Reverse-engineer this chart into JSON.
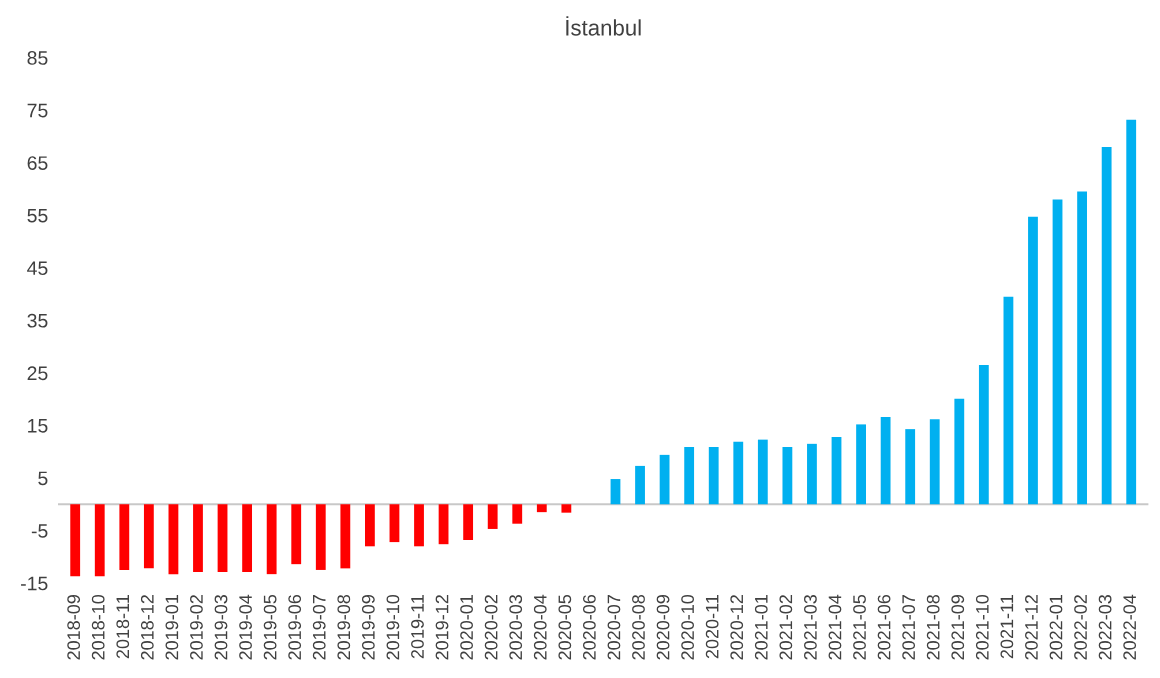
{
  "chart_data": {
    "type": "bar",
    "title": "İstanbul",
    "categories": [
      "2018-09",
      "2018-10",
      "2018-11",
      "2018-12",
      "2019-01",
      "2019-02",
      "2019-03",
      "2019-04",
      "2019-05",
      "2019-06",
      "2019-07",
      "2019-08",
      "2019-09",
      "2019-10",
      "2019-11",
      "2019-12",
      "2020-01",
      "2020-02",
      "2020-03",
      "2020-04",
      "2020-05",
      "2020-06",
      "2020-07",
      "2020-08",
      "2020-09",
      "2020-10",
      "2020-11",
      "2020-12",
      "2021-01",
      "2021-02",
      "2021-03",
      "2021-04",
      "2021-05",
      "2021-06",
      "2021-07",
      "2021-08",
      "2021-09",
      "2021-10",
      "2021-11",
      "2021-12",
      "2022-01",
      "2022-02",
      "2022-03",
      "2022-04"
    ],
    "values": [
      -13.7,
      -13.7,
      -12.5,
      -12.2,
      -13.3,
      -12.9,
      -12.9,
      -12.9,
      -13.3,
      -11.4,
      -12.5,
      -12.2,
      -8.0,
      -7.2,
      -8.0,
      -7.6,
      -6.8,
      -4.7,
      -3.7,
      -1.5,
      -1.6,
      0,
      4.8,
      7.3,
      9.4,
      10.9,
      10.9,
      11.9,
      12.3,
      10.9,
      11.5,
      12.8,
      15.2,
      16.6,
      14.3,
      16.2,
      20.1,
      26.5,
      39.5,
      54.7,
      58.0,
      59.5,
      68.0,
      73.2
    ],
    "colors": [
      "#ff0000",
      "#ff0000",
      "#ff0000",
      "#ff0000",
      "#ff0000",
      "#ff0000",
      "#ff0000",
      "#ff0000",
      "#ff0000",
      "#ff0000",
      "#ff0000",
      "#ff0000",
      "#ff0000",
      "#ff0000",
      "#ff0000",
      "#ff0000",
      "#ff0000",
      "#ff0000",
      "#ff0000",
      "#ff0000",
      "#ff0000",
      "#ff0000",
      "#00b0f0",
      "#00b0f0",
      "#00b0f0",
      "#00b0f0",
      "#00b0f0",
      "#00b0f0",
      "#00b0f0",
      "#00b0f0",
      "#00b0f0",
      "#00b0f0",
      "#00b0f0",
      "#00b0f0",
      "#00b0f0",
      "#00b0f0",
      "#00b0f0",
      "#00b0f0",
      "#00b0f0",
      "#00b0f0",
      "#00b0f0",
      "#00b0f0",
      "#00b0f0",
      "#00b0f0"
    ],
    "ylim": [
      -15,
      85
    ],
    "yticks": [
      -15,
      -5,
      5,
      15,
      25,
      35,
      45,
      55,
      65,
      75,
      85
    ],
    "grid": false,
    "legend": false
  }
}
